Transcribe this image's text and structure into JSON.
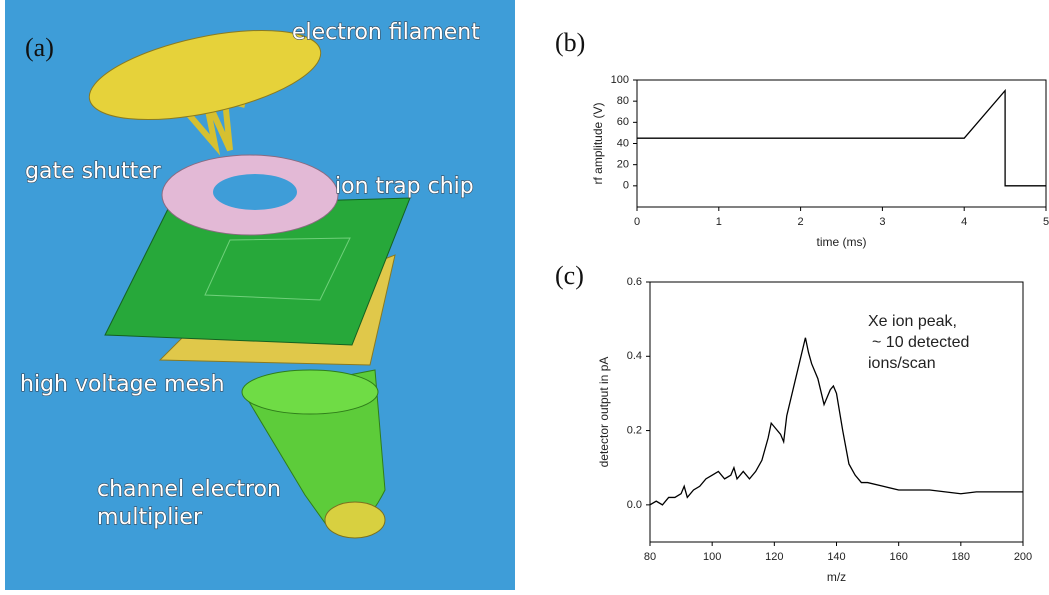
{
  "illustration": {
    "panel_label": "(a)",
    "labels": [
      "electron filament",
      "gate shutter",
      "ion trap chip",
      "high voltage mesh",
      "channel electron",
      "multiplier"
    ]
  },
  "chart_data": [
    {
      "type": "line",
      "panel_label": "(b)",
      "xlabel": "time (ms)",
      "ylabel": "rf amplitude (V)",
      "x": [
        0,
        4,
        4.5,
        4.5,
        5
      ],
      "values": [
        45,
        45,
        90,
        0,
        0
      ],
      "color": "#000000",
      "xlim": [
        0,
        5
      ],
      "xticks": [
        0,
        1,
        2,
        3,
        4,
        5
      ],
      "ylim": [
        -20,
        100
      ],
      "yticks": [
        0,
        20,
        40,
        60,
        80,
        100
      ]
    },
    {
      "type": "line",
      "panel_label": "(c)",
      "xlabel": "m/z",
      "ylabel": "detector output in pA",
      "annotation": [
        "Xe ion peak,",
        "~ 10 detected",
        "ions/scan"
      ],
      "x": [
        80,
        82,
        84,
        86,
        88,
        90,
        91,
        92,
        94,
        96,
        98,
        100,
        102,
        104,
        106,
        107,
        108,
        110,
        112,
        114,
        116,
        118,
        119,
        120,
        122,
        123,
        124,
        126,
        128,
        130,
        131,
        132,
        134,
        136,
        138,
        139,
        140,
        142,
        144,
        146,
        148,
        150,
        155,
        160,
        165,
        170,
        175,
        180,
        185,
        190,
        195,
        200
      ],
      "values": [
        0.0,
        0.01,
        0.0,
        0.02,
        0.02,
        0.03,
        0.05,
        0.02,
        0.04,
        0.05,
        0.07,
        0.08,
        0.09,
        0.07,
        0.08,
        0.1,
        0.07,
        0.09,
        0.07,
        0.09,
        0.12,
        0.18,
        0.22,
        0.21,
        0.19,
        0.17,
        0.24,
        0.31,
        0.38,
        0.45,
        0.41,
        0.38,
        0.34,
        0.27,
        0.31,
        0.32,
        0.3,
        0.2,
        0.11,
        0.08,
        0.06,
        0.06,
        0.05,
        0.04,
        0.04,
        0.04,
        0.035,
        0.03,
        0.035,
        0.035,
        0.035,
        0.035
      ],
      "color": "#000000",
      "xlim": [
        80,
        200
      ],
      "xticks": [
        80,
        100,
        120,
        140,
        160,
        180,
        200
      ],
      "ylim": [
        -0.1,
        0.6
      ],
      "yticks": [
        {
          "value": 0,
          "label": "0.0"
        },
        0.2,
        0.4,
        0.6
      ]
    }
  ]
}
